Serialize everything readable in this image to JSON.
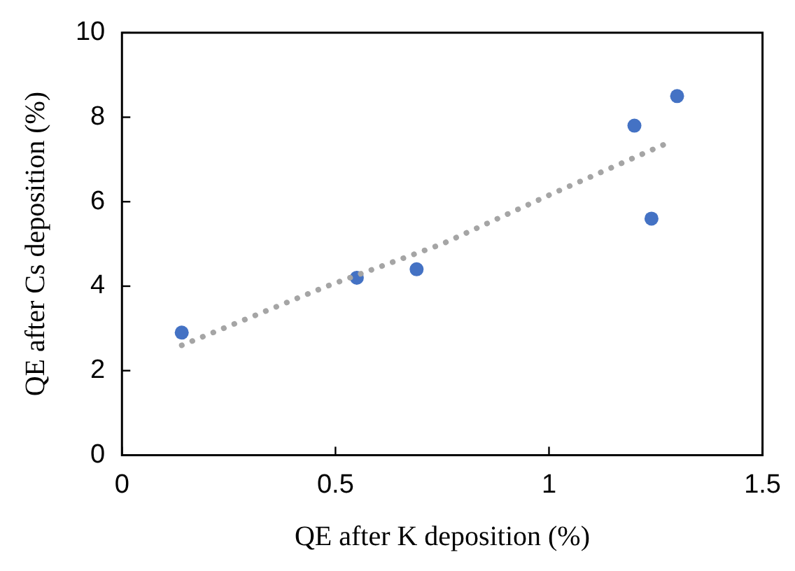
{
  "chart_data": {
    "type": "scatter",
    "xlabel": "QE after K deposition (%)",
    "ylabel": "QE after Cs deposition (%)",
    "series": [
      {
        "color": "#4472c4",
        "marker": "circle",
        "x": [
          0.14,
          0.55,
          0.69,
          1.2,
          1.24,
          1.3
        ],
        "values": [
          2.9,
          4.2,
          4.4,
          7.8,
          5.6,
          8.5
        ]
      },
      {
        "type": "line",
        "color": "#a5a5a5",
        "marker": "none",
        "line_style": "dotted",
        "x": [
          0.14,
          0.48,
          0.75,
          1.01,
          1.28
        ],
        "values": [
          2.6,
          4.0,
          5.0,
          6.2,
          7.4
        ]
      }
    ],
    "xlim": [
      0,
      1.5
    ],
    "xticks": [
      0,
      0.5,
      1,
      1.5
    ],
    "ylim": [
      0,
      10
    ],
    "yticks": [
      0,
      2,
      4,
      6,
      8,
      10
    ],
    "grid": false,
    "legend": false
  }
}
